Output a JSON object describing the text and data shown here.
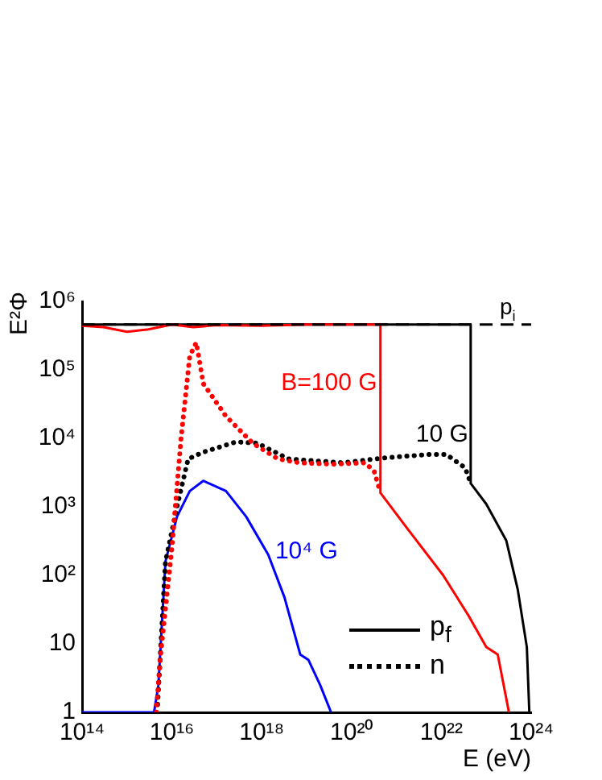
{
  "chart_data": {
    "type": "line",
    "ylabel": "E²Φ",
    "xlabel": "E (eV)",
    "log": "xy",
    "grid": false,
    "marker": "none",
    "xlim": [
      100000000000000.0,
      1e+24
    ],
    "xticks": [
      {
        "value": 100000000000000.0,
        "label": "10¹⁴"
      },
      {
        "value": 1e+16,
        "label": "10¹⁶"
      },
      {
        "value": 1e+18,
        "label": "10¹⁸"
      },
      {
        "value": 1e+20,
        "label": "10²⁰"
      },
      {
        "value": 1e+22,
        "label": "10²²"
      },
      {
        "value": 1e+24,
        "label": "10²⁴"
      }
    ],
    "ylim": [
      1,
      1000000.0
    ],
    "yticks": [
      1,
      10,
      {
        "value": 100,
        "label": "10²"
      },
      {
        "value": 1000,
        "label": "10³"
      },
      {
        "value": 10000,
        "label": "10⁴"
      },
      {
        "value": 100000,
        "label": "10⁵"
      },
      {
        "value": 1000000,
        "label": "10⁶"
      }
    ],
    "series": [
      {
        "color": "#000000",
        "line_style": "dashed",
        "x": [
          100000000000000.0,
          1e+24
        ],
        "values": [
          460000.0,
          460000.0
        ]
      },
      {
        "color": "#ff0000",
        "line_style": "solid",
        "x": [
          100000000000000.0,
          300000000000000.0,
          1000000000000000.0,
          3000000000000000.0,
          1e+16,
          3e+16,
          1e+17,
          1e+18,
          1e+19,
          1e+20,
          4.4e+20,
          4.4e+20,
          1.6e+21,
          1.1e+22,
          4e+22,
          1e+23,
          1.8e+23,
          3.2e+23
        ],
        "values": [
          440000.0,
          420000.0,
          360000.0,
          390000.0,
          460000.0,
          420000.0,
          450000.0,
          440000.0,
          460000.0,
          460000.0,
          460000.0,
          1600,
          520,
          100,
          26,
          9,
          7,
          1
        ]
      },
      {
        "color": "#000000",
        "line_style": "solid",
        "x": [
          100000000000000.0,
          4.5e+22,
          4.5e+22,
          1e+23,
          2.8e+23,
          5e+23,
          8e+23,
          9.1e+23
        ],
        "values": [
          460000.0,
          460000.0,
          2200,
          1100,
          320,
          63,
          9,
          1
        ]
      },
      {
        "color": "#ff0000",
        "line_style": "dotted",
        "x": [
          4500000000000000.0,
          5600000000000000.0,
          1e+16,
          1.6e+16,
          2.5e+16,
          3.5e+16,
          5e+16,
          1.6e+17,
          6.3e+17,
          2.3e+18,
          7e+18,
          3.7e+19,
          2e+20,
          3.2e+20,
          4.4e+20
        ],
        "values": [
          1,
          7,
          250,
          10000,
          160000,
          250000,
          63000,
          21000,
          8500,
          5000,
          4400,
          4200,
          4400,
          3300,
          1600
        ]
      },
      {
        "color": "#000000",
        "line_style": "dotted",
        "x": [
          4800000000000000.0,
          7200000000000000.0,
          1.3e+16,
          2.3e+16,
          5e+16,
          2.7e+17,
          7.9e+17,
          4e+18,
          6.3e+19,
          5.6e+20,
          5e+21,
          1.3e+22,
          3.4e+22,
          4.5e+22
        ],
        "values": [
          1.3,
          160,
          1000,
          5000,
          6300,
          8900,
          8500,
          5000,
          4400,
          5200,
          5800,
          5800,
          3700,
          2200
        ]
      },
      {
        "color": "#0000ff",
        "line_style": "solid",
        "x": [
          100000000000000.0,
          4000000000000000.0,
          5000000000000000.0,
          7200000000000000.0,
          1.3e+16,
          2.5e+16,
          5e+16,
          1.6e+17,
          4.5e+17,
          1.4e+18,
          3.2e+18,
          7.2e+18,
          1.1e+19,
          2e+19,
          3.5e+19
        ],
        "values": [
          1,
          1,
          2.5,
          160,
          720,
          1700,
          2400,
          1700,
          720,
          200,
          48,
          7,
          5.8,
          2.5,
          1
        ]
      }
    ],
    "annotations": [
      "B=100 G",
      "10 G",
      "10⁴ G",
      "p$_{i}$",
      "p$_{f}$",
      "n"
    ]
  }
}
